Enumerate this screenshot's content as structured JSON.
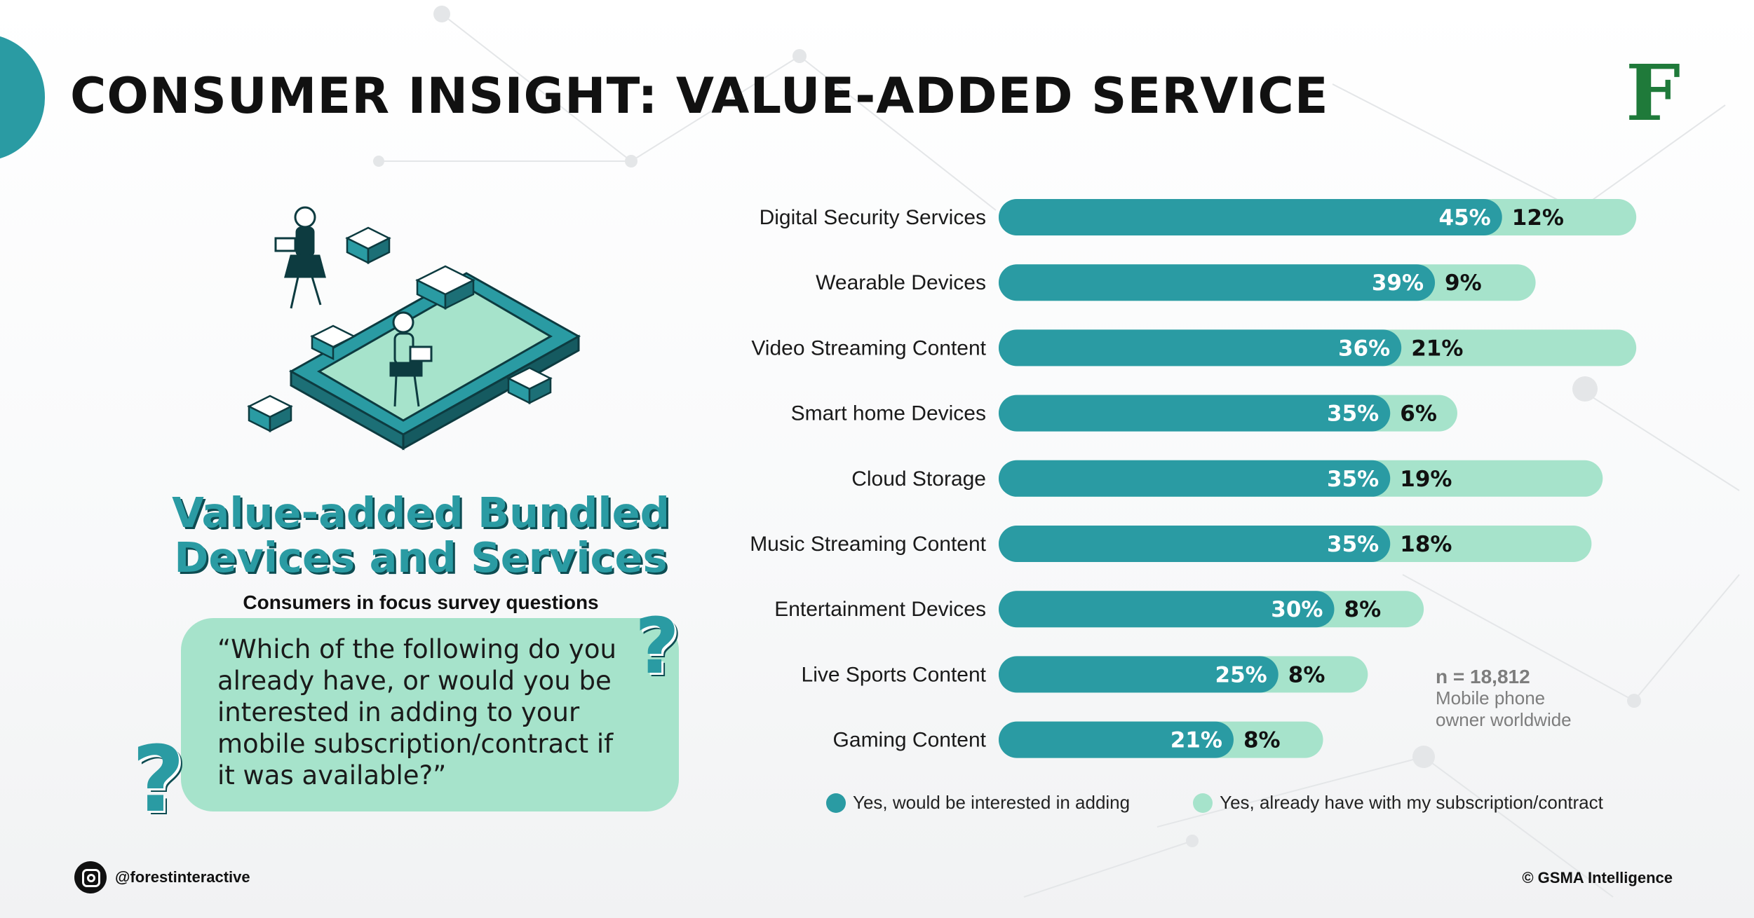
{
  "header": {
    "title": "CONSUMER INSIGHT: VALUE-ADDED SERVICE",
    "logo_letter": "F"
  },
  "left_panel": {
    "section_title_line1": "Value-added Bundled",
    "section_title_line2": "Devices and Services",
    "survey_label": "Consumers in focus survey questions",
    "question": "“Which of the following do you already have, or would you be interested in adding to your mobile subscription/contract if it was available?”",
    "qmark": "?"
  },
  "chart_data": {
    "type": "bar",
    "orientation": "horizontal",
    "stacked": true,
    "categories": [
      "Digital Security Services",
      "Wearable Devices",
      "Video Streaming Content",
      "Smart home Devices",
      "Cloud Storage",
      "Music Streaming Content",
      "Entertainment Devices",
      "Live Sports Content",
      "Gaming Content"
    ],
    "series": [
      {
        "name": "Yes, would be interested in adding",
        "color": "#2a9ba3",
        "values": [
          45,
          39,
          36,
          35,
          35,
          35,
          30,
          25,
          21
        ]
      },
      {
        "name": "Yes, already have with my subscription/contract",
        "color": "#a6e3cb",
        "values": [
          12,
          9,
          21,
          6,
          19,
          18,
          8,
          8,
          8
        ]
      }
    ],
    "value_suffix": "%",
    "legend_position": "bottom"
  },
  "sample_note": {
    "n": "n = 18,812",
    "line1": "Mobile phone",
    "line2": "owner worldwide"
  },
  "footer": {
    "social_handle": "@forestinteractive",
    "credit": "© GSMA Intelligence"
  },
  "colors": {
    "accent": "#2a9ba3",
    "accent_light": "#a6e3cb",
    "brand_green": "#1f7a3a"
  },
  "icons": [
    "instagram-icon",
    "question-mark-icon"
  ]
}
